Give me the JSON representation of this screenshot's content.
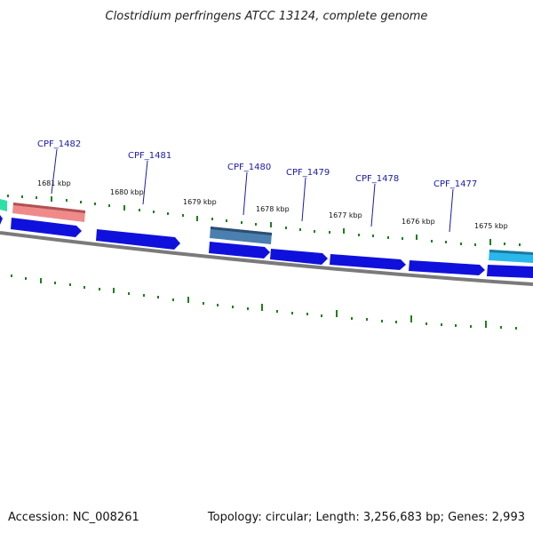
{
  "title": "Clostridium perfringens ATCC 13124, complete genome",
  "footer": {
    "accession": "Accession: NC_008261",
    "summary": "Topology: circular; Length: 3,256,683 bp; Genes: 2,993"
  },
  "colors": {
    "background": "#ffffff",
    "backbone": "#7a7a7a",
    "tick": "#1e7f1e",
    "cds": "#1010dd",
    "label": "#1a1aa8",
    "feature_salmon": "#f08a8a",
    "feature_steel": "#4a7fb0",
    "feature_cyan": "#2ab8ea",
    "feature_teal": "#2ee0a8"
  },
  "scale_labels": [
    {
      "kbp": 1681,
      "text": "1681 kbp"
    },
    {
      "kbp": 1680,
      "text": "1680 kbp"
    },
    {
      "kbp": 1679,
      "text": "1679 kbp"
    },
    {
      "kbp": 1678,
      "text": "1678 kbp"
    },
    {
      "kbp": 1677,
      "text": "1677 kbp"
    },
    {
      "kbp": 1676,
      "text": "1676 kbp"
    },
    {
      "kbp": 1675,
      "text": "1675 kbp"
    }
  ],
  "gene_labels": [
    {
      "id": "CPF_1482",
      "text": "CPF_1482"
    },
    {
      "id": "CPF_1481",
      "text": "CPF_1481"
    },
    {
      "id": "CPF_1480",
      "text": "CPF_1480"
    },
    {
      "id": "CPF_1479",
      "text": "CPF_1479"
    },
    {
      "id": "CPF_1478",
      "text": "CPF_1478"
    },
    {
      "id": "CPF_1477",
      "text": "CPF_1477"
    }
  ]
}
